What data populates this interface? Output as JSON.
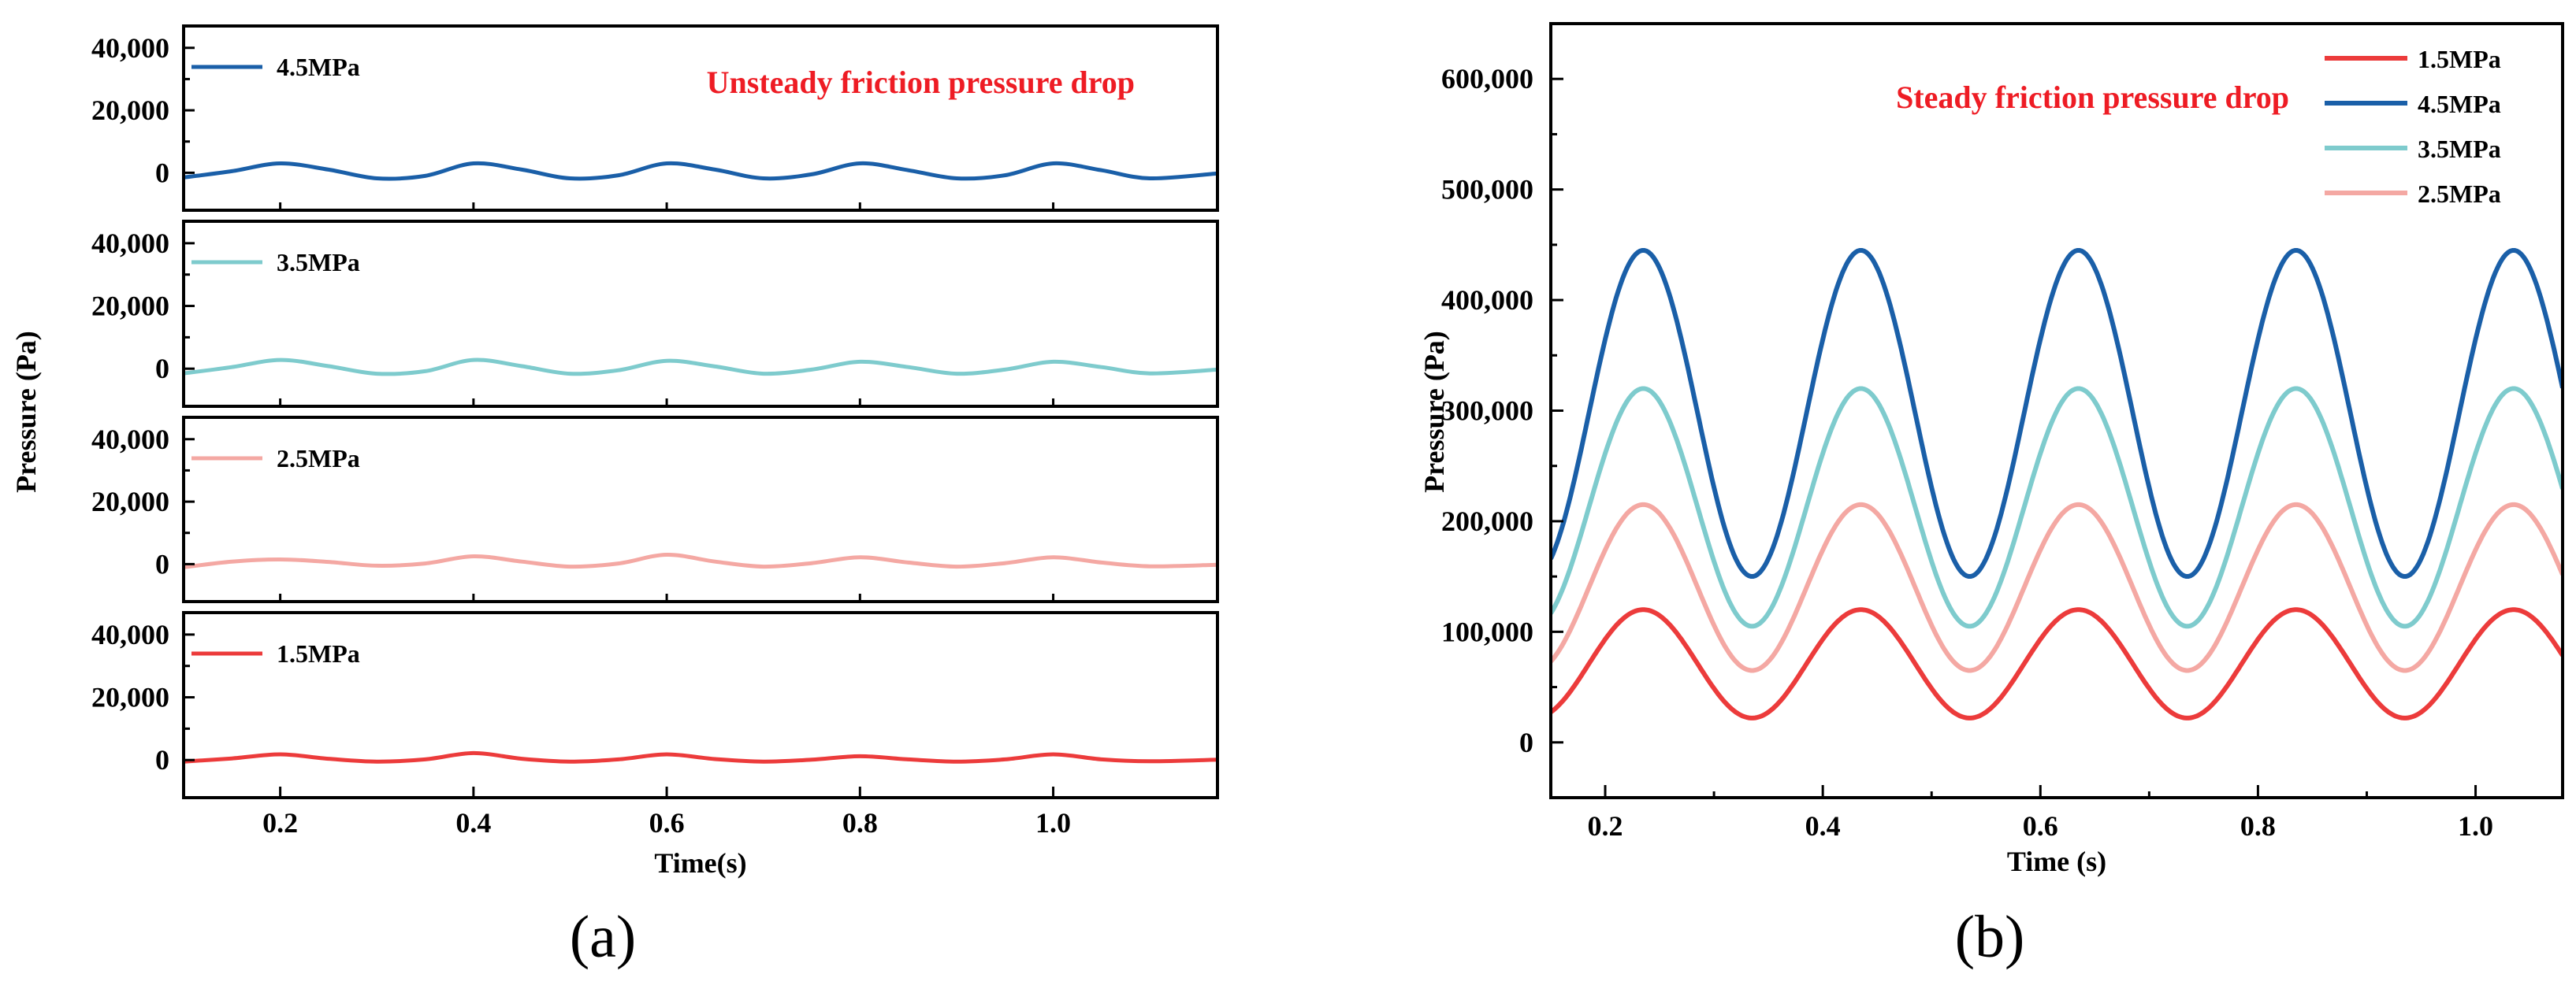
{
  "panel_labels": {
    "a": "(a)",
    "b": "(b)"
  },
  "chart_data": [
    {
      "type": "line",
      "panel": "a",
      "annotation": "Unsteady friction pressure drop",
      "annotation_color": "#ee1c24",
      "xlabel": "Time(s)",
      "ylabel": "Pressure (Pa)",
      "xlim": [
        0.1,
        1.17
      ],
      "ylim": [
        -12000,
        47000
      ],
      "x_ticks": [
        0.2,
        0.4,
        0.6,
        0.8,
        1.0
      ],
      "x_tick_labels": [
        "0.2",
        "0.4",
        "0.6",
        "0.8",
        "1.0"
      ],
      "y_ticks": [
        0,
        20000,
        40000
      ],
      "y_tick_labels": [
        "0",
        "20,000",
        "40,000"
      ],
      "subplots": [
        {
          "name": "4.5MPa",
          "color": "#1a5fa8",
          "x": [
            0.1,
            0.15,
            0.2,
            0.25,
            0.3,
            0.35,
            0.4,
            0.45,
            0.5,
            0.55,
            0.6,
            0.65,
            0.7,
            0.75,
            0.8,
            0.85,
            0.9,
            0.95,
            1.0,
            1.05,
            1.1,
            1.17
          ],
          "y": [
            -1500,
            500,
            3000,
            1000,
            -1800,
            -1000,
            3000,
            1000,
            -1800,
            -800,
            3000,
            1000,
            -1800,
            -500,
            3000,
            800,
            -1800,
            -800,
            3000,
            800,
            -1800,
            -200
          ]
        },
        {
          "name": "3.5MPa",
          "color": "#7ecbcd",
          "x": [
            0.1,
            0.15,
            0.2,
            0.25,
            0.3,
            0.35,
            0.4,
            0.45,
            0.5,
            0.55,
            0.6,
            0.65,
            0.7,
            0.75,
            0.8,
            0.85,
            0.9,
            0.95,
            1.0,
            1.05,
            1.1,
            1.17
          ],
          "y": [
            -1500,
            500,
            2800,
            800,
            -1600,
            -800,
            2800,
            800,
            -1600,
            -500,
            2500,
            700,
            -1600,
            -300,
            2200,
            500,
            -1600,
            -300,
            2200,
            500,
            -1500,
            -300
          ]
        },
        {
          "name": "2.5MPa",
          "color": "#f4a8a3",
          "x": [
            0.1,
            0.15,
            0.2,
            0.25,
            0.3,
            0.35,
            0.4,
            0.45,
            0.5,
            0.55,
            0.6,
            0.65,
            0.7,
            0.75,
            0.8,
            0.85,
            0.9,
            0.95,
            1.0,
            1.05,
            1.1,
            1.17
          ],
          "y": [
            -1000,
            800,
            1500,
            700,
            -500,
            200,
            2500,
            800,
            -800,
            200,
            3000,
            800,
            -800,
            300,
            2200,
            500,
            -800,
            300,
            2200,
            500,
            -700,
            -200
          ]
        },
        {
          "name": "1.5MPa",
          "color": "#ec3b3b",
          "x": [
            0.1,
            0.15,
            0.2,
            0.25,
            0.3,
            0.35,
            0.4,
            0.45,
            0.5,
            0.55,
            0.6,
            0.65,
            0.7,
            0.75,
            0.8,
            0.85,
            0.9,
            0.95,
            1.0,
            1.05,
            1.1,
            1.17
          ],
          "y": [
            -500,
            500,
            1800,
            400,
            -500,
            200,
            2200,
            400,
            -500,
            200,
            1800,
            300,
            -500,
            100,
            1200,
            200,
            -500,
            200,
            1800,
            200,
            -400,
            100
          ]
        }
      ]
    },
    {
      "type": "line",
      "panel": "b",
      "annotation": "Steady friction pressure drop",
      "annotation_color": "#ee1c24",
      "xlabel": "Time (s)",
      "ylabel": "Pressure (Pa)",
      "xlim": [
        0.15,
        1.08
      ],
      "ylim": [
        -50000,
        650000
      ],
      "x_ticks": [
        0.2,
        0.4,
        0.6,
        0.8,
        1.0
      ],
      "x_tick_labels": [
        "0.2",
        "0.4",
        "0.6",
        "0.8",
        "1.0"
      ],
      "y_ticks": [
        0,
        100000,
        200000,
        300000,
        400000,
        500000,
        600000
      ],
      "y_tick_labels": [
        "0",
        "100,000",
        "200,000",
        "300,000",
        "400,000",
        "500,000",
        "600,000"
      ],
      "legend_position": "top-right",
      "period": 0.2,
      "peak_x": 0.235,
      "series": [
        {
          "name": "1.5MPa",
          "color": "#ec3b3b",
          "min": 22000,
          "max": 120000
        },
        {
          "name": "4.5MPa",
          "color": "#1a5fa8",
          "min": 150000,
          "max": 445000
        },
        {
          "name": "3.5MPa",
          "color": "#7ecbcd",
          "min": 105000,
          "max": 320000
        },
        {
          "name": "2.5MPa",
          "color": "#f4a8a3",
          "min": 65000,
          "max": 215000
        }
      ]
    }
  ]
}
